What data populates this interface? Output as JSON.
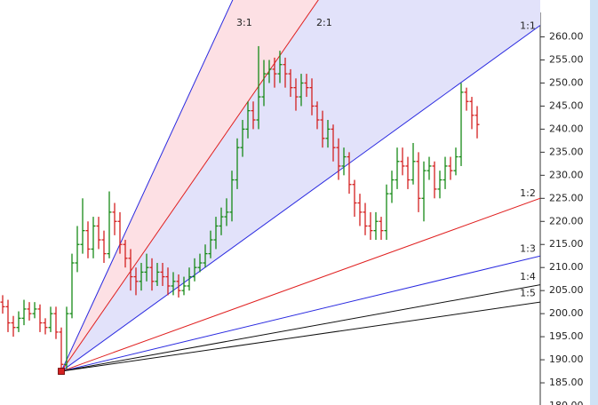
{
  "chart_data": {
    "type": "ohlc",
    "open": [
      202.5,
      201.5,
      198,
      197,
      199,
      201,
      200,
      201,
      198,
      197,
      200,
      196,
      189,
      200,
      211,
      215,
      218,
      214,
      219,
      216,
      213,
      222,
      220,
      215,
      212,
      208,
      207,
      209,
      210,
      207,
      209,
      208,
      206,
      207,
      205,
      206,
      208,
      210,
      211,
      213,
      216,
      219,
      221,
      222,
      229,
      236,
      240,
      244,
      242,
      247,
      252,
      253,
      252,
      254,
      252,
      249,
      247,
      250,
      249,
      245,
      242,
      238,
      240,
      236,
      232,
      234,
      228,
      224,
      222,
      219,
      218,
      220,
      218,
      226,
      229,
      233,
      232,
      229,
      233,
      225,
      231,
      232,
      227,
      229,
      232,
      231,
      234,
      248,
      246,
      243
    ],
    "high": [
      204,
      203,
      199.5,
      200.5,
      203,
      202.5,
      202.5,
      202,
      199,
      201.5,
      201.5,
      197,
      201.5,
      213,
      219,
      225,
      220,
      221,
      221,
      218,
      226.5,
      224,
      222,
      216,
      214,
      210,
      211,
      213,
      212,
      211,
      211,
      210,
      209,
      208.5,
      208,
      210,
      212,
      213,
      215,
      218,
      221,
      223,
      225,
      231,
      238,
      242,
      246,
      246,
      258,
      255,
      255,
      255.5,
      257,
      255.5,
      253,
      251,
      252,
      252,
      251,
      246,
      244,
      242,
      241,
      238,
      236,
      235,
      229,
      226,
      224,
      222,
      222,
      221,
      228,
      231,
      236,
      236,
      234,
      237,
      235,
      233,
      234,
      233,
      231,
      234,
      234,
      236,
      250,
      249,
      247,
      245
    ],
    "low": [
      200,
      196,
      195,
      196,
      197.5,
      198.5,
      199,
      196,
      195.5,
      196,
      194.5,
      187.5,
      188,
      199,
      209,
      213,
      212,
      212,
      214,
      211,
      212,
      217,
      213,
      210,
      205,
      204,
      205,
      207,
      205,
      206,
      206,
      204,
      204,
      203.5,
      204,
      205,
      207,
      209,
      210,
      212,
      214,
      217,
      219,
      220,
      227,
      234,
      238,
      240,
      240,
      245,
      250,
      249,
      250,
      249,
      247,
      244,
      245,
      247,
      243,
      240,
      236,
      236,
      233,
      229,
      230,
      226,
      221,
      219,
      217,
      216,
      216,
      216,
      216,
      224,
      227,
      230,
      227,
      228,
      222,
      220,
      229,
      225,
      225,
      227,
      229,
      230,
      232,
      244,
      240,
      238
    ],
    "close": [
      201.5,
      198,
      197,
      199,
      201,
      200,
      201,
      198,
      197,
      200,
      196,
      189,
      200,
      211,
      215,
      218,
      214,
      219,
      216,
      213,
      222,
      220,
      215,
      212,
      208,
      207,
      209,
      210,
      207,
      209,
      208,
      206,
      207,
      205,
      206,
      208,
      210,
      211,
      213,
      216,
      219,
      221,
      222,
      229,
      236,
      240,
      244,
      242,
      247,
      252,
      253,
      252,
      254,
      252,
      249,
      247,
      250,
      249,
      245,
      242,
      238,
      240,
      236,
      232,
      234,
      228,
      224,
      222,
      219,
      218,
      220,
      218,
      226,
      229,
      233,
      232,
      229,
      233,
      225,
      231,
      232,
      227,
      229,
      232,
      231,
      234,
      248,
      246,
      243,
      241
    ],
    "up_color": "#168a16",
    "down_color": "#d42020",
    "ylim": [
      180,
      268
    ],
    "yticks": [
      {
        "value": 180,
        "label": "180.00"
      },
      {
        "value": 185,
        "label": "185.00"
      },
      {
        "value": 190,
        "label": "190.00"
      },
      {
        "value": 195,
        "label": "195.00"
      },
      {
        "value": 200,
        "label": "200.00"
      },
      {
        "value": 205,
        "label": "205.00"
      },
      {
        "value": 210,
        "label": "210.00"
      },
      {
        "value": 215,
        "label": "215.00"
      },
      {
        "value": 220,
        "label": "220.00"
      },
      {
        "value": 225,
        "label": "225.00"
      },
      {
        "value": 230,
        "label": "230.00"
      },
      {
        "value": 235,
        "label": "235.00"
      },
      {
        "value": 240,
        "label": "240.00"
      },
      {
        "value": 245,
        "label": "245.00"
      },
      {
        "value": 250,
        "label": "250.00"
      },
      {
        "value": 255,
        "label": "255.00"
      },
      {
        "value": 260,
        "label": "260.00"
      }
    ],
    "fan": {
      "anchor_index": 11,
      "anchor_price": 187.5,
      "unit_per_bar": 0.835,
      "anchor_color": "#d42020",
      "lines": [
        {
          "label": "3:1",
          "slope": 3,
          "color": "#2a2ae0",
          "fill": "#fde0e4"
        },
        {
          "label": "2:1",
          "slope": 2,
          "color": "#e02020",
          "fill": "#e2e2fa"
        },
        {
          "label": "1:1",
          "slope": 1,
          "color": "#2a2ae0"
        },
        {
          "label": "1:2",
          "slope": 0.5,
          "color": "#e02020"
        },
        {
          "label": "1:3",
          "slope": 0.3333,
          "color": "#2a2ae0"
        },
        {
          "label": "1:4",
          "slope": 0.25,
          "color": "#111111"
        },
        {
          "label": "1:5",
          "slope": 0.2,
          "color": "#111111"
        }
      ]
    }
  }
}
